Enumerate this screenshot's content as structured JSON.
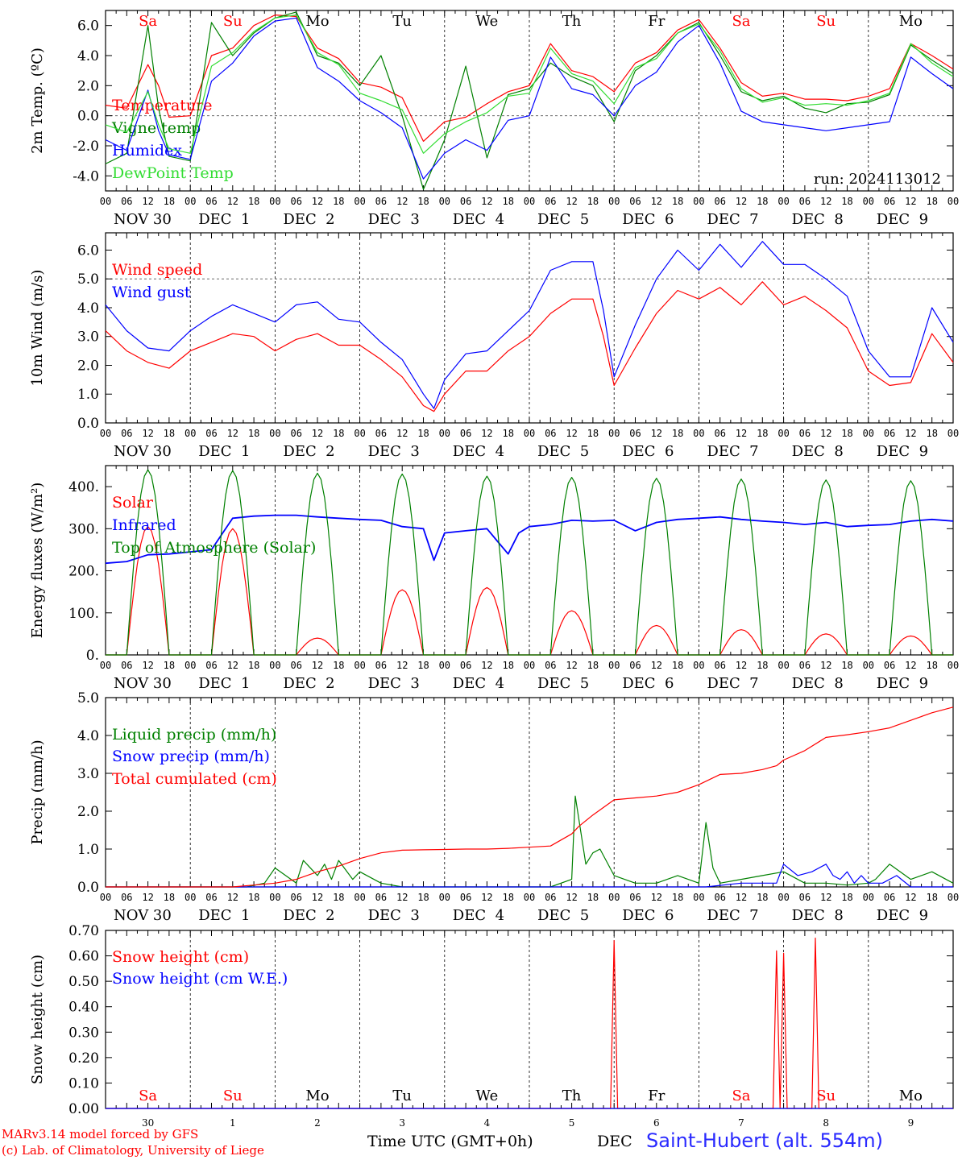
{
  "footer": {
    "model_line": "MARv3.14 model forced by GFS",
    "lab_line": "(c) Lab. of Climatology, University of Liege",
    "time_label": "Time UTC (GMT+0h)",
    "month_label": "DEC",
    "station": "Saint-Hubert (alt. 554m)"
  },
  "colors": {
    "red": "#ff0000",
    "green": "#008000",
    "blue": "#0000ff",
    "lightgreen": "#33dd33",
    "weekend": "#ff0000",
    "weekday": "#000000"
  },
  "day_names": [
    "Sa",
    "Su",
    "Mo",
    "Tu",
    "We",
    "Th",
    "Fr",
    "Sa",
    "Su",
    "Mo"
  ],
  "weekend_flags": [
    true,
    true,
    false,
    false,
    false,
    false,
    false,
    true,
    true,
    false
  ],
  "date_labels": [
    "NOV 30",
    "DEC  1",
    "DEC  2",
    "DEC  3",
    "DEC  4",
    "DEC  5",
    "DEC  6",
    "DEC  7",
    "DEC  8",
    "DEC  9"
  ],
  "day_numbers": [
    "30",
    "1",
    "2",
    "3",
    "4",
    "5",
    "6",
    "7",
    "8",
    "9"
  ],
  "hour_ticks": [
    "00",
    "06",
    "12",
    "18"
  ],
  "chart_data": [
    {
      "type": "line",
      "ylabel": "2m Temp. (ºC)",
      "ylim": [
        -5,
        7
      ],
      "yticks": [
        -4,
        -2,
        0,
        2,
        4,
        6
      ],
      "ytick_labels": [
        "-4.0",
        "-2.0",
        "0.0",
        "2.0",
        "4.0",
        "6.0"
      ],
      "reference_line": 0,
      "run_label": "run: 2024113012",
      "x_unit": "hours since NOV 30 00 UTC",
      "series": [
        {
          "name": "Temperature",
          "color": "red",
          "x": [
            0,
            6,
            12,
            15,
            18,
            24,
            30,
            36,
            42,
            48,
            54,
            60,
            66,
            72,
            78,
            84,
            90,
            96,
            102,
            108,
            114,
            120,
            126,
            132,
            138,
            144,
            150,
            156,
            162,
            168,
            174,
            180,
            186,
            192,
            198,
            204,
            210,
            216,
            222,
            228,
            234,
            240
          ],
          "y": [
            0.7,
            0.5,
            3.4,
            2,
            -0.1,
            0,
            4.0,
            4.5,
            6.0,
            6.7,
            6.6,
            4.5,
            3.8,
            2.2,
            1.9,
            1.2,
            -1.7,
            -0.4,
            -0.1,
            0.8,
            1.6,
            2.0,
            4.8,
            3.0,
            2.6,
            1.6,
            3.5,
            4.2,
            5.7,
            6.4,
            4.5,
            2.2,
            1.3,
            1.5,
            1.1,
            1.1,
            1.0,
            1.3,
            1.8,
            4.8,
            4.0,
            3.1
          ]
        },
        {
          "name": "Vigne temp",
          "color": "green",
          "x": [
            0,
            6,
            12,
            15,
            18,
            24,
            30,
            36,
            42,
            48,
            54,
            60,
            66,
            72,
            78,
            84,
            90,
            96,
            102,
            108,
            114,
            120,
            126,
            132,
            138,
            144,
            150,
            156,
            162,
            168,
            174,
            180,
            186,
            192,
            198,
            204,
            210,
            216,
            222,
            228,
            234,
            240
          ],
          "y": [
            -3.2,
            -2.5,
            6.0,
            0.5,
            -2.7,
            -3.0,
            6.2,
            4.0,
            5.5,
            6.5,
            6.9,
            4.0,
            3.5,
            2.0,
            4.0,
            0.0,
            -4.9,
            -1.6,
            3.3,
            -2.8,
            1.4,
            1.8,
            3.5,
            2.6,
            2.0,
            -0.4,
            3.0,
            4.0,
            5.5,
            6.2,
            4.0,
            1.6,
            1.0,
            1.3,
            0.5,
            0.2,
            0.8,
            0.9,
            1.4,
            4.7,
            3.7,
            2.8
          ]
        },
        {
          "name": "Humidex",
          "color": "blue",
          "x": [
            0,
            6,
            12,
            15,
            18,
            24,
            30,
            36,
            42,
            48,
            54,
            60,
            66,
            72,
            78,
            84,
            90,
            96,
            102,
            108,
            114,
            120,
            126,
            132,
            138,
            144,
            150,
            156,
            162,
            168,
            174,
            180,
            186,
            192,
            198,
            204,
            210,
            216,
            222,
            228,
            234,
            240
          ],
          "y": [
            -1.6,
            -2.3,
            1.7,
            -1,
            -2.6,
            -2.9,
            2.3,
            3.5,
            5.3,
            6.3,
            6.5,
            3.2,
            2.3,
            1.0,
            0.2,
            -0.8,
            -4.2,
            -2.5,
            -1.6,
            -2.3,
            -0.3,
            0.0,
            3.9,
            1.8,
            1.4,
            0.0,
            2.0,
            2.9,
            4.9,
            6.0,
            3.5,
            0.3,
            -0.4,
            -0.6,
            -0.8,
            -1.0,
            -0.8,
            -0.6,
            -0.4,
            3.9,
            2.8,
            1.8
          ]
        },
        {
          "name": "DewPoint Temp",
          "color": "lightgreen",
          "x": [
            0,
            6,
            12,
            15,
            18,
            24,
            30,
            36,
            42,
            48,
            54,
            60,
            66,
            72,
            78,
            84,
            90,
            96,
            102,
            108,
            114,
            120,
            126,
            132,
            138,
            144,
            150,
            156,
            162,
            168,
            174,
            180,
            186,
            192,
            198,
            204,
            210,
            216,
            222,
            228,
            234,
            240
          ],
          "y": [
            -0.6,
            -1.1,
            1.6,
            -0.6,
            -2.2,
            -2.5,
            3.3,
            4.2,
            5.6,
            6.5,
            6.7,
            4.2,
            3.4,
            1.5,
            1.0,
            0.4,
            -2.5,
            -1.2,
            -0.4,
            0.2,
            1.3,
            1.5,
            4.5,
            2.8,
            2.3,
            0.8,
            3.2,
            3.8,
            5.5,
            6.1,
            4.3,
            1.8,
            0.9,
            1.2,
            0.7,
            0.8,
            0.7,
            1.0,
            1.5,
            4.8,
            3.5,
            2.6
          ]
        }
      ]
    },
    {
      "type": "line",
      "ylabel": "10m Wind (m/s)",
      "ylim": [
        0,
        6.6
      ],
      "yticks": [
        0,
        1,
        2,
        3,
        4,
        5,
        6
      ],
      "ytick_labels": [
        "0.0",
        "1.0",
        "2.0",
        "3.0",
        "4.0",
        "5.0",
        "6.0"
      ],
      "reference_line": 5,
      "series": [
        {
          "name": "Wind speed",
          "color": "red",
          "x": [
            0,
            6,
            12,
            18,
            24,
            30,
            36,
            42,
            48,
            54,
            60,
            66,
            72,
            78,
            84,
            90,
            93,
            96,
            102,
            108,
            114,
            120,
            126,
            132,
            138,
            141,
            144,
            150,
            156,
            162,
            168,
            174,
            180,
            186,
            192,
            198,
            204,
            210,
            216,
            222,
            228,
            234,
            240
          ],
          "y": [
            3.2,
            2.5,
            2.1,
            1.9,
            2.5,
            2.8,
            3.1,
            3.0,
            2.5,
            2.9,
            3.1,
            2.7,
            2.7,
            2.2,
            1.6,
            0.6,
            0.4,
            1.0,
            1.8,
            1.8,
            2.5,
            3.0,
            3.8,
            4.3,
            4.3,
            3.0,
            1.3,
            2.6,
            3.8,
            4.6,
            4.3,
            4.7,
            4.1,
            4.9,
            4.1,
            4.4,
            3.9,
            3.3,
            1.8,
            1.3,
            1.4,
            3.1,
            2.1
          ]
        },
        {
          "name": "Wind gust",
          "color": "blue",
          "x": [
            0,
            6,
            12,
            18,
            24,
            30,
            36,
            42,
            48,
            54,
            60,
            66,
            72,
            78,
            84,
            90,
            93,
            96,
            102,
            108,
            114,
            120,
            126,
            132,
            138,
            141,
            144,
            150,
            156,
            162,
            168,
            174,
            180,
            186,
            192,
            198,
            204,
            210,
            216,
            222,
            228,
            234,
            240
          ],
          "y": [
            4.1,
            3.2,
            2.6,
            2.5,
            3.2,
            3.7,
            4.1,
            3.8,
            3.5,
            4.1,
            4.2,
            3.6,
            3.5,
            2.8,
            2.2,
            1.0,
            0.5,
            1.5,
            2.4,
            2.5,
            3.2,
            3.9,
            5.3,
            5.6,
            5.6,
            3.9,
            1.6,
            3.4,
            5.0,
            6.0,
            5.3,
            6.2,
            5.4,
            6.3,
            5.5,
            5.5,
            5.0,
            4.4,
            2.5,
            1.6,
            1.6,
            4.0,
            2.8
          ]
        }
      ]
    },
    {
      "type": "line",
      "ylabel": "Energy fluxes (W/m²)",
      "ylim": [
        0,
        450
      ],
      "yticks": [
        0,
        100,
        200,
        300,
        400
      ],
      "ytick_labels": [
        "0.",
        "100.",
        "200.",
        "300.",
        "400."
      ],
      "series": [
        {
          "name": "Solar",
          "color": "red",
          "diurnal_peaks": [
            305,
            300,
            40,
            155,
            160,
            105,
            70,
            60,
            50,
            45
          ]
        },
        {
          "name": "Infrared",
          "color": "blue",
          "x": [
            0,
            6,
            12,
            18,
            24,
            30,
            36,
            42,
            48,
            54,
            60,
            66,
            72,
            78,
            84,
            90,
            93,
            96,
            102,
            108,
            111,
            114,
            117,
            120,
            126,
            132,
            138,
            144,
            150,
            156,
            162,
            168,
            174,
            180,
            186,
            192,
            198,
            204,
            210,
            216,
            222,
            228,
            234,
            240
          ],
          "y": [
            218,
            222,
            238,
            240,
            245,
            250,
            325,
            330,
            332,
            332,
            328,
            325,
            322,
            320,
            305,
            300,
            225,
            290,
            295,
            300,
            270,
            240,
            290,
            305,
            310,
            320,
            318,
            320,
            295,
            315,
            322,
            325,
            328,
            322,
            318,
            315,
            310,
            315,
            305,
            308,
            310,
            318,
            322,
            318
          ]
        },
        {
          "name": "Top of Atmosphere (Solar)",
          "color": "green",
          "diurnal_peaks": [
            440,
            438,
            432,
            430,
            425,
            422,
            420,
            418,
            416,
            414
          ]
        }
      ]
    },
    {
      "type": "line",
      "ylabel": "Precip (mm/h)",
      "ylim": [
        0,
        5
      ],
      "yticks": [
        0,
        1,
        2,
        3,
        4,
        5
      ],
      "ytick_labels": [
        "0.0",
        "1.0",
        "2.0",
        "3.0",
        "4.0",
        "5.0"
      ],
      "series": [
        {
          "name": "Liquid precip (mm/h)",
          "color": "green",
          "x": [
            0,
            40,
            45,
            48,
            54,
            56,
            60,
            62,
            64,
            66,
            70,
            72,
            78,
            84,
            96,
            120,
            126,
            132,
            133,
            136,
            138,
            140,
            144,
            150,
            156,
            162,
            168,
            170,
            172,
            174,
            180,
            186,
            192,
            198,
            204,
            210,
            216,
            218,
            222,
            228,
            234,
            240
          ],
          "y": [
            0,
            0,
            0.1,
            0.5,
            0.1,
            0.7,
            0.3,
            0.6,
            0.2,
            0.7,
            0.2,
            0.4,
            0.1,
            0,
            0,
            0,
            0,
            0.2,
            2.4,
            0.6,
            0.9,
            1.0,
            0.3,
            0.1,
            0.1,
            0.3,
            0.1,
            1.7,
            0.5,
            0.1,
            0.2,
            0.3,
            0.4,
            0.1,
            0.1,
            0.05,
            0.1,
            0.2,
            0.6,
            0.2,
            0.4,
            0.1
          ]
        },
        {
          "name": "Snow precip (mm/h)",
          "color": "blue",
          "x": [
            0,
            150,
            160,
            170,
            180,
            190,
            192,
            196,
            200,
            204,
            206,
            208,
            210,
            212,
            214,
            216,
            220,
            224,
            228,
            234,
            240
          ],
          "y": [
            0,
            0,
            0,
            0,
            0.1,
            0.1,
            0.6,
            0.3,
            0.4,
            0.6,
            0.3,
            0.2,
            0.4,
            0.1,
            0.3,
            0.1,
            0.1,
            0.3,
            0,
            0,
            0
          ]
        },
        {
          "name": "Total cumulated (cm)",
          "color": "red",
          "x": [
            0,
            36,
            42,
            48,
            54,
            60,
            66,
            72,
            78,
            84,
            90,
            96,
            102,
            108,
            114,
            120,
            126,
            132,
            134,
            138,
            144,
            150,
            156,
            162,
            168,
            174,
            180,
            186,
            190,
            192,
            198,
            204,
            210,
            216,
            222,
            228,
            234,
            240
          ],
          "y": [
            0,
            0,
            0.05,
            0.1,
            0.2,
            0.4,
            0.55,
            0.75,
            0.9,
            0.97,
            0.98,
            0.99,
            1.0,
            1.0,
            1.02,
            1.05,
            1.08,
            1.4,
            1.6,
            1.9,
            2.3,
            2.35,
            2.4,
            2.5,
            2.7,
            2.97,
            3.0,
            3.1,
            3.2,
            3.35,
            3.6,
            3.95,
            4.02,
            4.1,
            4.2,
            4.4,
            4.6,
            4.75
          ]
        }
      ]
    },
    {
      "type": "line",
      "ylabel": "Snow height (cm)",
      "ylim": [
        0,
        0.7
      ],
      "yticks": [
        0,
        0.1,
        0.2,
        0.3,
        0.4,
        0.5,
        0.6,
        0.7
      ],
      "ytick_labels": [
        "0.00",
        "0.10",
        "0.20",
        "0.30",
        "0.40",
        "0.50",
        "0.60",
        "0.70"
      ],
      "series": [
        {
          "name": "Snow height (cm)",
          "color": "red",
          "x": [
            0,
            143,
            144,
            145,
            189,
            190,
            191,
            192,
            193,
            200,
            201,
            202,
            240
          ],
          "y": [
            0,
            0,
            0.66,
            0,
            0,
            0.62,
            0,
            0.61,
            0,
            0,
            0.67,
            0,
            0
          ]
        },
        {
          "name": "Snow height (cm W.E.)",
          "color": "blue",
          "x": [
            0,
            240
          ],
          "y": [
            0,
            0
          ]
        }
      ]
    }
  ]
}
